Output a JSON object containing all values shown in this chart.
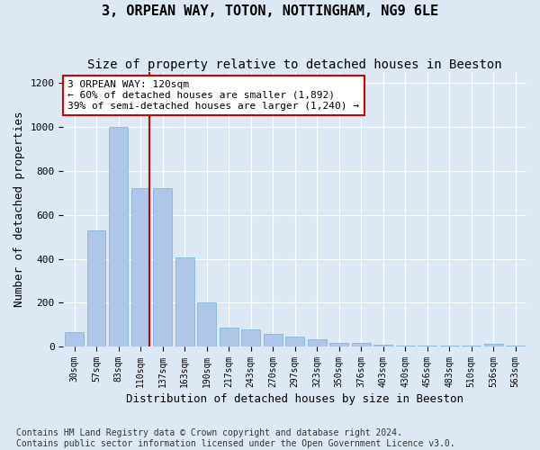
{
  "title": "3, ORPEAN WAY, TOTON, NOTTINGHAM, NG9 6LE",
  "subtitle": "Size of property relative to detached houses in Beeston",
  "xlabel": "Distribution of detached houses by size in Beeston",
  "ylabel": "Number of detached properties",
  "categories": [
    "30sqm",
    "57sqm",
    "83sqm",
    "110sqm",
    "137sqm",
    "163sqm",
    "190sqm",
    "217sqm",
    "243sqm",
    "270sqm",
    "297sqm",
    "323sqm",
    "350sqm",
    "376sqm",
    "403sqm",
    "430sqm",
    "456sqm",
    "483sqm",
    "510sqm",
    "536sqm",
    "563sqm"
  ],
  "values": [
    65,
    530,
    1000,
    720,
    720,
    405,
    200,
    85,
    80,
    57,
    45,
    35,
    18,
    18,
    8,
    5,
    3,
    3,
    3,
    13,
    3
  ],
  "bar_color": "#aec6e8",
  "bar_edge_color": "#7aafd4",
  "vline_color": "#cc0000",
  "vline_index": 3,
  "annotation_text": "3 ORPEAN WAY: 120sqm\n← 60% of detached houses are smaller (1,892)\n39% of semi-detached houses are larger (1,240) →",
  "annotation_box_facecolor": "#ffffff",
  "annotation_box_edgecolor": "#cc0000",
  "ylim": [
    0,
    1250
  ],
  "yticks": [
    0,
    200,
    400,
    600,
    800,
    1000,
    1200
  ],
  "bg_color": "#dde8f5",
  "grid_color": "#ffffff",
  "footer_text": "Contains HM Land Registry data © Crown copyright and database right 2024.\nContains public sector information licensed under the Open Government Licence v3.0.",
  "title_fontsize": 11,
  "subtitle_fontsize": 10,
  "xlabel_fontsize": 9,
  "ylabel_fontsize": 9,
  "tick_fontsize": 7,
  "annotation_fontsize": 8,
  "footer_fontsize": 7
}
